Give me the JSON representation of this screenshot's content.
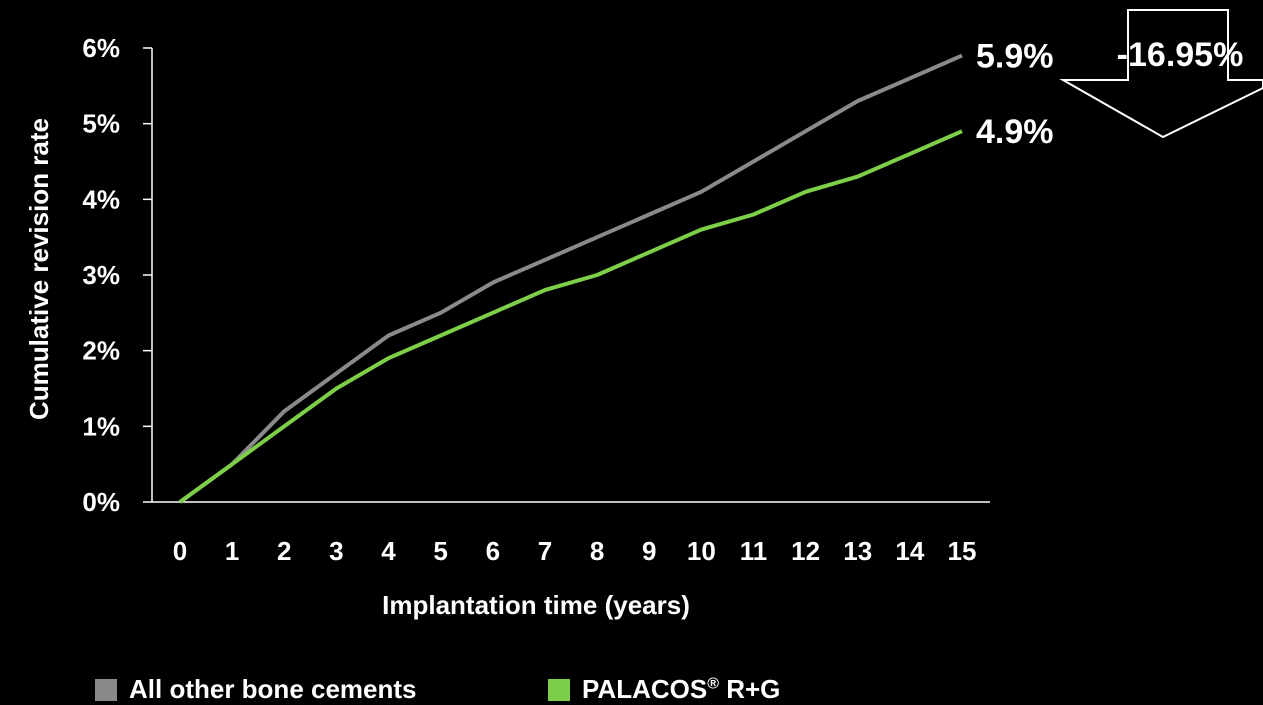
{
  "chart_data": {
    "type": "line",
    "xlabel": "Implantation time (years)",
    "ylabel": "Cumulative revision rate",
    "x": [
      0,
      1,
      2,
      3,
      4,
      5,
      6,
      7,
      8,
      9,
      10,
      11,
      12,
      13,
      14,
      15
    ],
    "y_ticks": [
      "0%",
      "1%",
      "2%",
      "3%",
      "4%",
      "5%",
      "6%"
    ],
    "ylim": [
      0,
      6
    ],
    "xlim": [
      0,
      15
    ],
    "grid": false,
    "legend_position": "bottom",
    "series": [
      {
        "name": "All other bone cements",
        "color": "#8a8a8a",
        "values": [
          0,
          0.5,
          1.2,
          1.7,
          2.2,
          2.5,
          2.9,
          3.2,
          3.5,
          3.8,
          4.1,
          4.5,
          4.9,
          5.3,
          5.6,
          5.9
        ],
        "end_label": "5.9%"
      },
      {
        "name": "PALACOS",
        "name_sup": "®",
        "name_suffix": " R+G",
        "color": "#7dcf4a",
        "values": [
          0,
          0.5,
          1.0,
          1.5,
          1.9,
          2.2,
          2.5,
          2.8,
          3.0,
          3.3,
          3.6,
          3.8,
          4.1,
          4.3,
          4.6,
          4.9
        ],
        "end_label": "4.9%"
      }
    ],
    "annotation": {
      "text": "-16.95%",
      "shape": "down-arrow"
    }
  }
}
